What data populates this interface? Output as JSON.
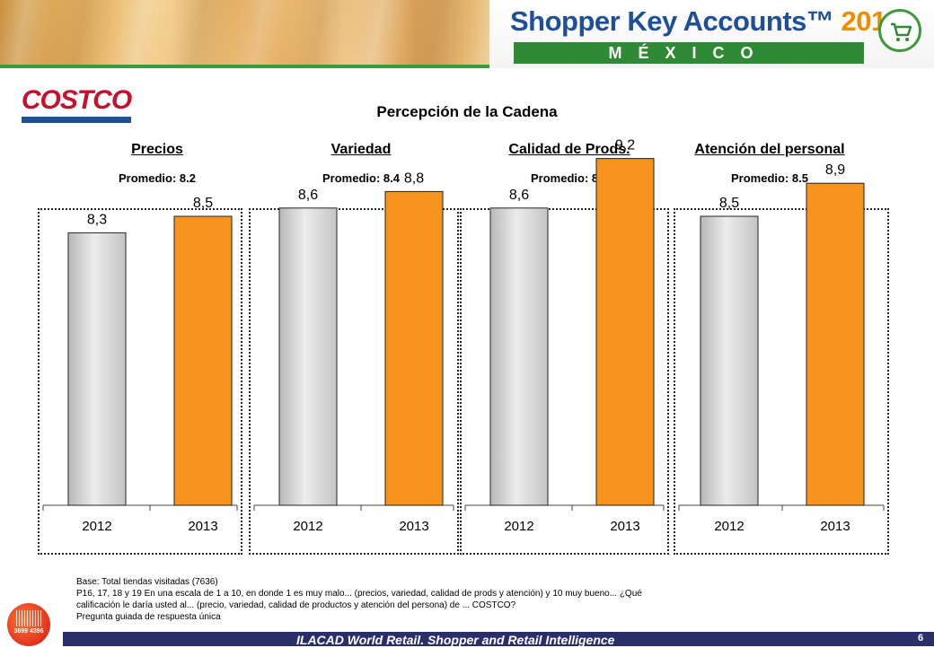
{
  "header": {
    "brand_title": "Shopper Key Accounts™",
    "brand_year": "2013",
    "country": "MÉXICO",
    "badge_icon": "shopping-cart-icon"
  },
  "logo": {
    "text": "COSTCO"
  },
  "title": "Percepción de la Cadena",
  "colors": {
    "bar_2012": "#cfcfcf",
    "bar_2013": "#f7941d",
    "accent_green": "#2e8a34",
    "footer_blue": "#2a2f69"
  },
  "chart_data": [
    {
      "type": "bar",
      "title": "Precios",
      "subtitle": "Promedio: 8.2",
      "categories": [
        "2012",
        "2013"
      ],
      "values": [
        8.3,
        8.5
      ],
      "value_labels": [
        "8,3",
        "8,5"
      ],
      "ylim": [
        0,
        10
      ]
    },
    {
      "type": "bar",
      "title": "Variedad",
      "subtitle": "Promedio: 8.4",
      "categories": [
        "2012",
        "2013"
      ],
      "values": [
        8.6,
        8.8
      ],
      "value_labels": [
        "8,6",
        "8,8"
      ],
      "ylim": [
        0,
        10
      ]
    },
    {
      "type": "bar",
      "title": "Calidad de Prods.",
      "subtitle": "Promedio: 8.4",
      "categories": [
        "2012",
        "2013"
      ],
      "values": [
        8.6,
        9.2
      ],
      "value_labels": [
        "8,6",
        "9,2"
      ],
      "ylim": [
        0,
        10
      ]
    },
    {
      "type": "bar",
      "title": "Atención del personal",
      "subtitle": "Promedio: 8.5",
      "categories": [
        "2012",
        "2013"
      ],
      "values": [
        8.5,
        8.9
      ],
      "value_labels": [
        "8,5",
        "8,9"
      ],
      "ylim": [
        0,
        10
      ]
    }
  ],
  "footnote": {
    "line1": "Base: Total tiendas visitadas (7636)",
    "line2": "P16, 17, 18 y 19 En una escala de 1 a 10, en donde 1 es muy malo... (precios, variedad, calidad de prods y atención)  y 10 muy bueno... ¿Qué",
    "line3": "calificación le daría usted al... (precio, variedad, calidad de productos y atención del persona) de ...  COSTCO?",
    "line4": "Pregunta guiada de respuesta única"
  },
  "footer": {
    "text": "ILACAD World Retail. Shopper and Retail Intelligence",
    "page": "6"
  },
  "seal": {
    "text": "3699 4396"
  }
}
